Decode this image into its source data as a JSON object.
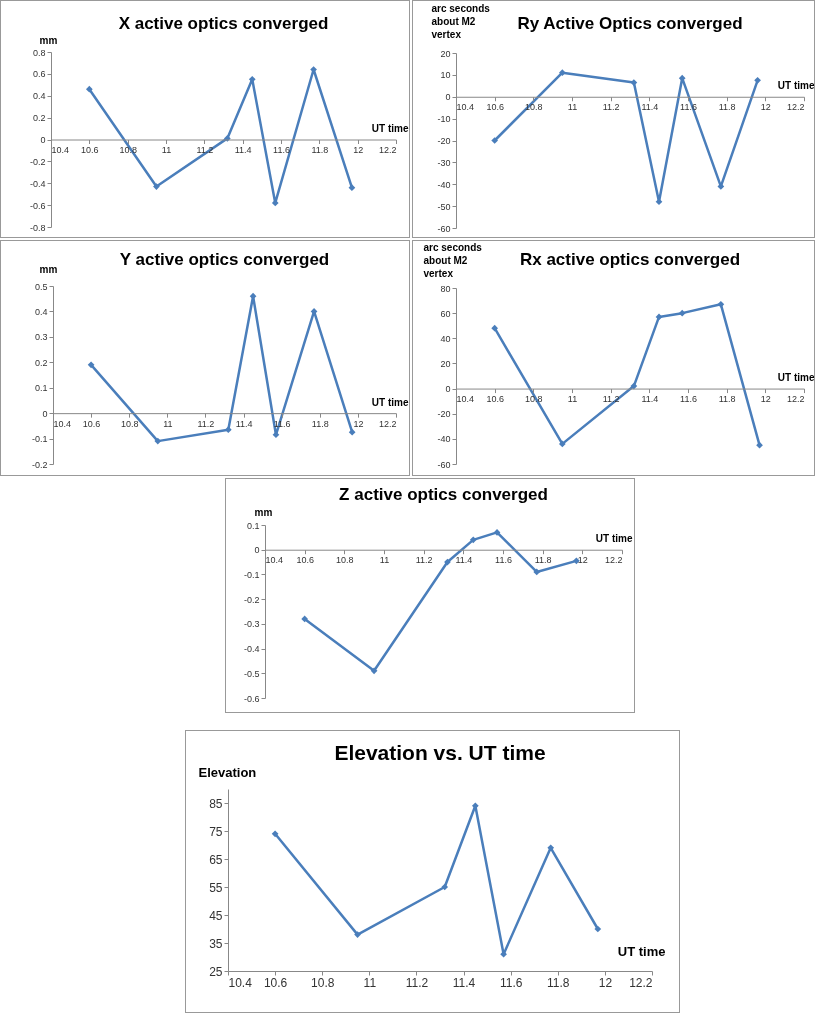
{
  "chart_data": [
    {
      "type": "line",
      "title": "X active optics converged",
      "xlabel": "UT time",
      "ylabel": "mm",
      "x": [
        10.6,
        10.95,
        11.32,
        11.45,
        11.57,
        11.77,
        11.97
      ],
      "values": [
        0.46,
        -0.43,
        0.01,
        0.55,
        -0.58,
        0.64,
        -0.44
      ],
      "color": "#4a7ebb",
      "marker": "diamond",
      "xlim": [
        10.4,
        12.2
      ],
      "xticks": [
        10.4,
        10.6,
        10.8,
        11,
        11.2,
        11.4,
        11.6,
        11.8,
        12,
        12.2
      ],
      "ylim": [
        -0.8,
        0.8
      ],
      "yticks": [
        -0.8,
        -0.6,
        -0.4,
        -0.2,
        0,
        0.2,
        0.4,
        0.6,
        0.8
      ]
    },
    {
      "type": "line",
      "title": "Ry Active Optics converged",
      "xlabel": "UT time",
      "ylabel": "arc seconds about M2 vertex",
      "x": [
        10.6,
        10.95,
        11.32,
        11.45,
        11.57,
        11.77,
        11.96
      ],
      "values": [
        -20,
        11,
        6.5,
        -48,
        8.5,
        -41,
        7.5
      ],
      "color": "#4a7ebb",
      "marker": "diamond",
      "xlim": [
        10.4,
        12.2
      ],
      "xticks": [
        10.4,
        10.6,
        10.8,
        11,
        11.2,
        11.4,
        11.6,
        11.8,
        12,
        12.2
      ],
      "ylim": [
        -60,
        20
      ],
      "yticks": [
        -60,
        -50,
        -40,
        -30,
        -20,
        -10,
        0,
        10,
        20
      ]
    },
    {
      "type": "line",
      "title": "Y active optics converged",
      "xlabel": "UT time",
      "ylabel": "mm",
      "x": [
        10.6,
        10.95,
        11.32,
        11.45,
        11.57,
        11.77,
        11.97
      ],
      "values": [
        0.19,
        -0.11,
        -0.065,
        0.46,
        -0.085,
        0.4,
        -0.075
      ],
      "color": "#4a7ebb",
      "marker": "diamond",
      "xlim": [
        10.4,
        12.2
      ],
      "xticks": [
        10.4,
        10.6,
        10.8,
        11,
        11.2,
        11.4,
        11.6,
        11.8,
        12,
        12.2
      ],
      "ylim": [
        -0.2,
        0.5
      ],
      "yticks": [
        -0.2,
        -0.1,
        0,
        0.1,
        0.2,
        0.3,
        0.4,
        0.5
      ]
    },
    {
      "type": "line",
      "title": "Rx active optics converged",
      "xlabel": "UT time",
      "ylabel": "arc seconds about M2 vertex",
      "x": [
        10.6,
        10.95,
        11.32,
        11.45,
        11.57,
        11.77,
        11.97
      ],
      "values": [
        48,
        -44,
        2,
        57,
        60,
        67,
        -45
      ],
      "color": "#4a7ebb",
      "marker": "diamond",
      "xlim": [
        10.4,
        12.2
      ],
      "xticks": [
        10.4,
        10.6,
        10.8,
        11,
        11.2,
        11.4,
        11.6,
        11.8,
        12,
        12.2
      ],
      "ylim": [
        -60,
        80
      ],
      "yticks": [
        -60,
        -40,
        -20,
        0,
        20,
        40,
        60,
        80
      ]
    },
    {
      "type": "line",
      "title": "Z active optics converged",
      "xlabel": "UT time",
      "ylabel": "mm",
      "x": [
        10.6,
        10.95,
        11.32,
        11.45,
        11.57,
        11.77,
        11.97
      ],
      "values": [
        -0.28,
        -0.49,
        -0.05,
        0.04,
        0.07,
        -0.09,
        -0.045
      ],
      "color": "#4a7ebb",
      "marker": "diamond",
      "xlim": [
        10.4,
        12.2
      ],
      "xticks": [
        10.4,
        10.6,
        10.8,
        11,
        11.2,
        11.4,
        11.6,
        11.8,
        12,
        12.2
      ],
      "ylim": [
        -0.6,
        0.1
      ],
      "yticks": [
        -0.6,
        -0.5,
        -0.4,
        -0.3,
        -0.2,
        -0.1,
        0,
        0.1
      ]
    },
    {
      "type": "line",
      "title": "Elevation vs. UT time",
      "xlabel": "UT time",
      "ylabel": "Elevation",
      "x": [
        10.6,
        10.95,
        11.32,
        11.45,
        11.57,
        11.77,
        11.97
      ],
      "values": [
        74,
        38,
        55,
        84,
        31,
        69,
        40
      ],
      "color": "#4a7ebb",
      "marker": "diamond",
      "xlim": [
        10.4,
        12.2
      ],
      "xticks": [
        10.4,
        10.6,
        10.8,
        11,
        11.2,
        11.4,
        11.6,
        11.8,
        12,
        12.2
      ],
      "ylim": [
        25,
        90
      ],
      "yticks": [
        25,
        35,
        45,
        55,
        65,
        75,
        85
      ]
    }
  ]
}
